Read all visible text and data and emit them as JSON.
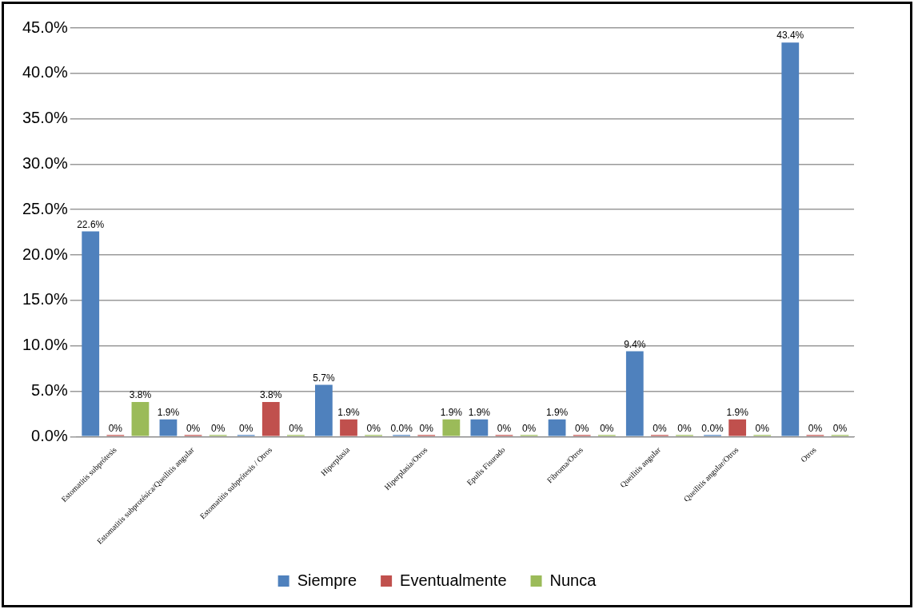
{
  "chart_data": {
    "type": "bar",
    "categories": [
      "Estomatitis subprótesis",
      "Estomatitis subprotésica/Queilitis angular",
      "Estomatitis subprótesis / Otros",
      "Hiperplasia",
      "Hiperplasia/Otros",
      "Epulis Fisurado",
      "Fibroma/Otros",
      "Queilitis angular",
      "Queilitis angular/Otros",
      "Otros"
    ],
    "series": [
      {
        "name": "Siempre",
        "color": "#4f81bd",
        "values": [
          22.6,
          1.9,
          0,
          5.7,
          0,
          1.9,
          1.9,
          9.4,
          0,
          43.4
        ],
        "value_labels": [
          "22.6%",
          "1.9%",
          "0%",
          "5.7%",
          "0.0%",
          "1.9%",
          "1.9%",
          "9.4%",
          "0.0%",
          "43.4%"
        ]
      },
      {
        "name": "Eventualmente",
        "color": "#c0504d",
        "values": [
          0,
          0,
          3.8,
          1.9,
          0,
          0,
          0,
          0,
          1.9,
          0
        ],
        "value_labels": [
          "0%",
          "0%",
          "3.8%",
          "1.9%",
          "0%",
          "0%",
          "0%",
          "0%",
          "1.9%",
          "0%"
        ]
      },
      {
        "name": "Nunca",
        "color": "#9bbb59",
        "values": [
          3.8,
          0,
          0,
          0,
          1.9,
          0,
          0,
          0,
          0,
          0
        ],
        "value_labels": [
          "3.8%",
          "0%",
          "0%",
          "0%",
          "1.9%",
          "0%",
          "0%",
          "0%",
          "0%",
          "0%"
        ]
      }
    ],
    "ylim": [
      0,
      45
    ],
    "yticks": [
      {
        "value": 0,
        "label": "0.0%"
      },
      {
        "value": 5,
        "label": "5.0%"
      },
      {
        "value": 10,
        "label": "10.0%"
      },
      {
        "value": 15,
        "label": "15.0%"
      },
      {
        "value": 20,
        "label": "20.0%"
      },
      {
        "value": 25,
        "label": "25.0%"
      },
      {
        "value": 30,
        "label": "30.0%"
      },
      {
        "value": 35,
        "label": "35.0%"
      },
      {
        "value": 40,
        "label": "40.0%"
      },
      {
        "value": 45,
        "label": "45.0%"
      }
    ],
    "grid": "y",
    "legend": "bottom"
  }
}
